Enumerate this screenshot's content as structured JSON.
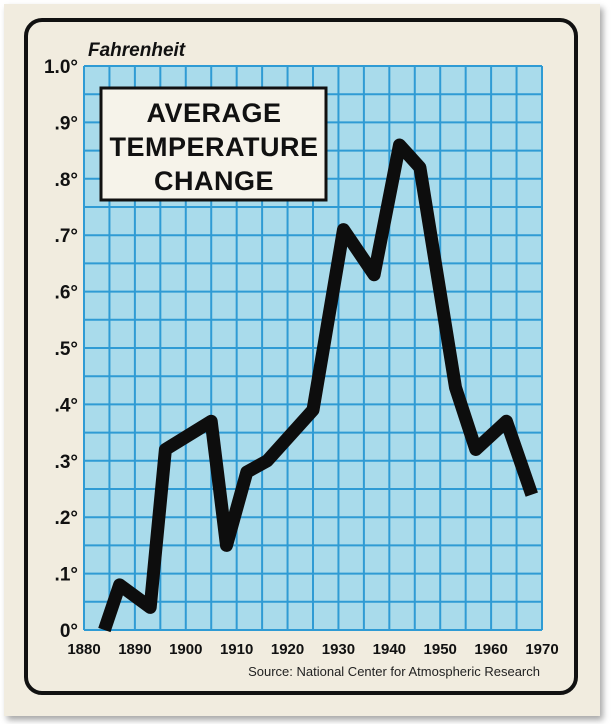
{
  "chart_data": {
    "type": "line",
    "title_lines": [
      "AVERAGE",
      "TEMPERATURE",
      "CHANGE"
    ],
    "ylabel": "Fahrenheit",
    "source": "Source: National Center for Atmospheric Research",
    "ylim": [
      0,
      1.0
    ],
    "xlim": [
      1880,
      1970
    ],
    "y_ticks": [
      {
        "value": 0,
        "label": "0°"
      },
      {
        "value": 0.1,
        "label": ".1°"
      },
      {
        "value": 0.2,
        "label": ".2°"
      },
      {
        "value": 0.3,
        "label": ".3°"
      },
      {
        "value": 0.4,
        "label": ".4°"
      },
      {
        "value": 0.5,
        "label": ".5°"
      },
      {
        "value": 0.6,
        "label": ".6°"
      },
      {
        "value": 0.7,
        "label": ".7°"
      },
      {
        "value": 0.8,
        "label": ".8°"
      },
      {
        "value": 0.9,
        "label": ".9°"
      },
      {
        "value": 1.0,
        "label": "1.0°"
      }
    ],
    "x_ticks": [
      {
        "value": 1880,
        "label": "1880"
      },
      {
        "value": 1890,
        "label": "1890"
      },
      {
        "value": 1900,
        "label": "1900"
      },
      {
        "value": 1910,
        "label": "1910"
      },
      {
        "value": 1920,
        "label": "1920"
      },
      {
        "value": 1930,
        "label": "1930"
      },
      {
        "value": 1940,
        "label": "1940"
      },
      {
        "value": 1950,
        "label": "1950"
      },
      {
        "value": 1960,
        "label": "1960"
      },
      {
        "value": 1970,
        "label": "1970"
      }
    ],
    "grid": true,
    "series": [
      {
        "points": [
          [
            1884,
            0.0
          ],
          [
            1887,
            0.08
          ],
          [
            1893,
            0.04
          ],
          [
            1896,
            0.32
          ],
          [
            1905,
            0.37
          ],
          [
            1908,
            0.15
          ],
          [
            1912,
            0.28
          ],
          [
            1916,
            0.3
          ],
          [
            1925,
            0.39
          ],
          [
            1931,
            0.71
          ],
          [
            1937,
            0.63
          ],
          [
            1942,
            0.86
          ],
          [
            1946,
            0.82
          ],
          [
            1953,
            0.43
          ],
          [
            1957,
            0.32
          ],
          [
            1963,
            0.37
          ],
          [
            1968,
            0.24
          ]
        ]
      }
    ]
  },
  "colors": {
    "plot_bg": "#a9dbeb",
    "grid": "#2f9bd4",
    "line": "#0d0d0d",
    "frame": "#111111",
    "paper": "#f1ecdf"
  }
}
